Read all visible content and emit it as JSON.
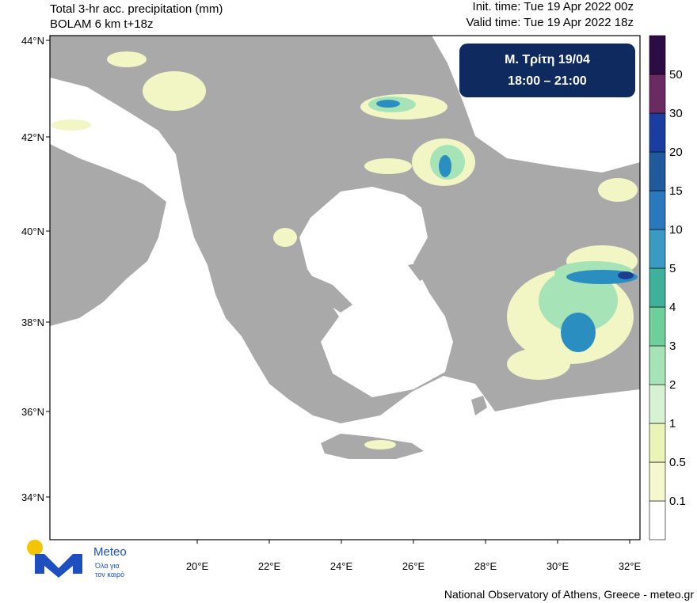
{
  "header": {
    "title_line1": "Total 3-hr acc. precipitation (mm)",
    "title_line2": "BOLAM 6 km t+18z",
    "init_time": "Init. time: Tue 19 Apr 2022 00z",
    "valid_time": "Valid time: Tue 19 Apr 2022 18z"
  },
  "badge": {
    "day": "Μ. Τρίτη 19/04",
    "time": "18:00 – 21:00"
  },
  "axes": {
    "lat_labels": [
      "44°N",
      "42°N",
      "40°N",
      "38°N",
      "36°N",
      "34°N"
    ],
    "lon_labels": [
      "20°E",
      "22°E",
      "24°E",
      "26°E",
      "28°E",
      "30°E",
      "32°E"
    ]
  },
  "colorbar": {
    "labels": [
      "0.1",
      "0.5",
      "1",
      "2",
      "3",
      "4",
      "5",
      "10",
      "15",
      "20",
      "30",
      "50"
    ]
  },
  "logo": {
    "name": "Meteo",
    "tagline_line1": "Όλα για",
    "tagline_line2": "τον καιρό"
  },
  "footer": "National Observatory of Athens, Greece - meteo.gr"
}
